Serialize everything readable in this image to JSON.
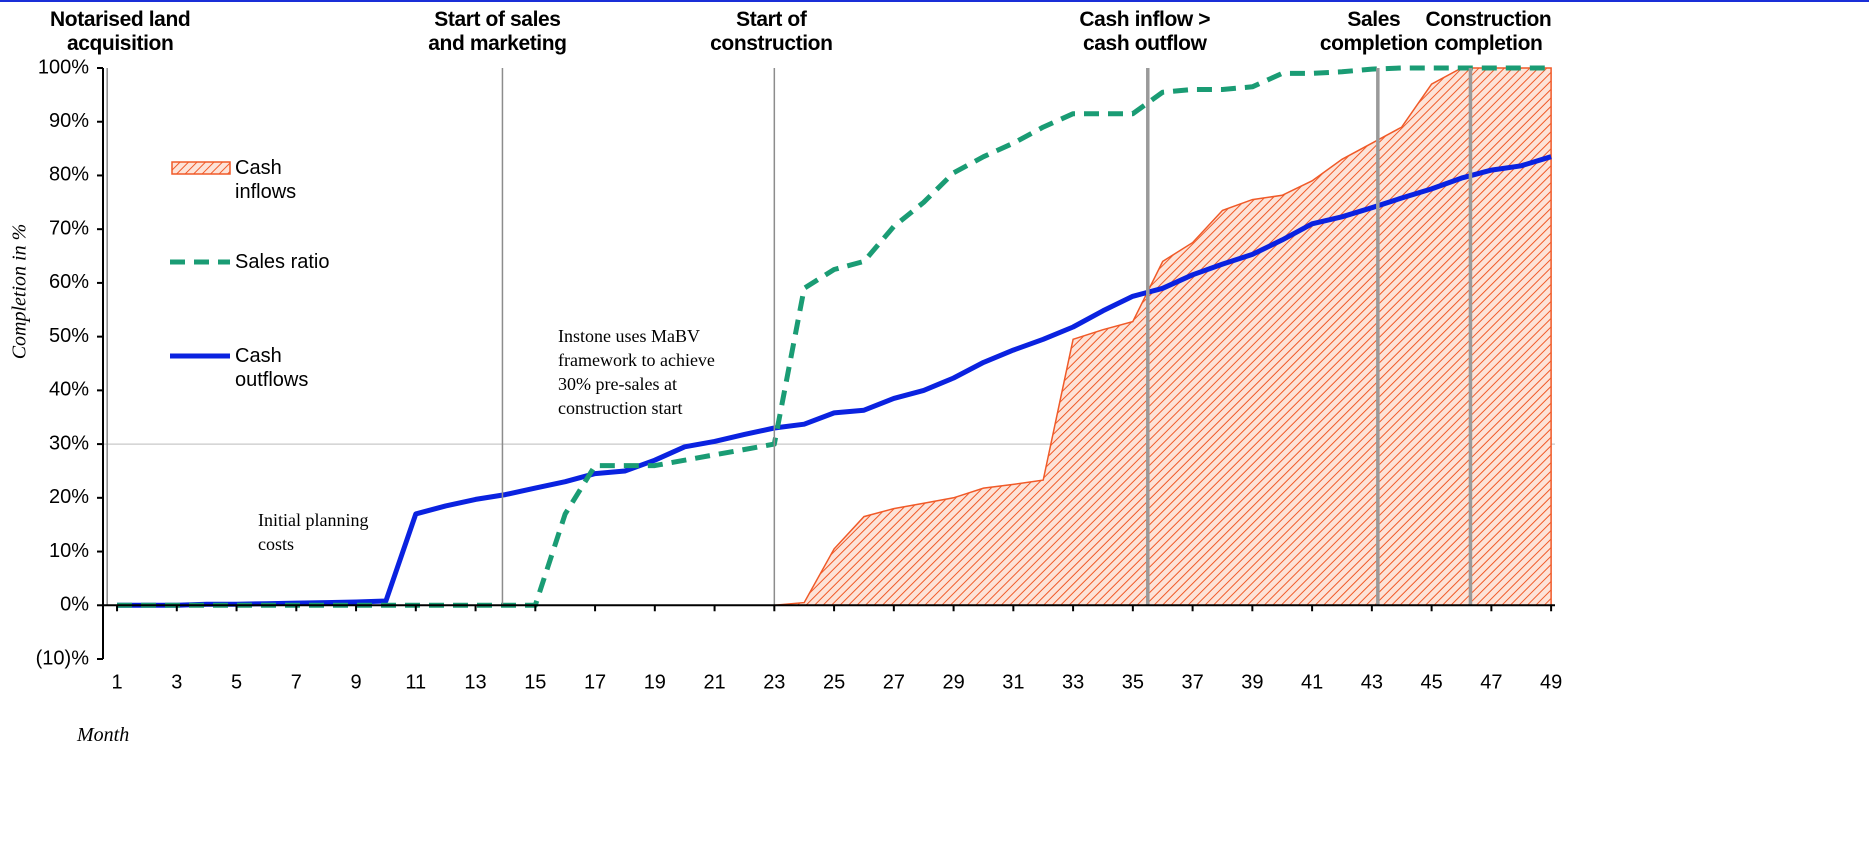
{
  "chart_data": {
    "type": "line",
    "x": [
      1,
      2,
      3,
      4,
      5,
      6,
      7,
      8,
      9,
      10,
      11,
      12,
      13,
      14,
      15,
      16,
      17,
      18,
      19,
      20,
      21,
      22,
      23,
      24,
      25,
      26,
      27,
      28,
      29,
      30,
      31,
      32,
      33,
      34,
      35,
      36,
      37,
      38,
      39,
      40,
      41,
      42,
      43,
      44,
      45,
      46,
      47,
      48,
      49
    ],
    "series": [
      {
        "name": "Cash inflows",
        "kind": "area",
        "color": "#f05a28",
        "values": [
          0,
          0,
          0,
          0,
          0,
          0,
          0,
          0,
          0,
          0,
          0,
          0,
          0,
          0,
          0,
          0,
          0,
          0,
          0,
          0,
          0,
          0,
          0,
          0.5,
          10.5,
          16.5,
          18,
          19,
          20,
          21.8,
          22.5,
          23.3,
          49.5,
          51.3,
          52.8,
          64,
          67.5,
          73.5,
          75.5,
          76.3,
          79,
          83,
          86,
          89,
          97,
          100,
          100,
          100,
          100
        ]
      },
      {
        "name": "Sales ratio",
        "kind": "dashed",
        "color": "#1a9c74",
        "values": [
          0,
          0,
          0,
          0,
          0,
          0,
          0,
          0,
          0,
          0,
          0,
          0,
          0,
          0,
          0,
          17,
          26,
          26,
          26,
          27,
          28,
          29,
          30,
          59,
          62.5,
          64,
          70.5,
          75,
          80.5,
          83.5,
          86,
          89,
          91.5,
          91.5,
          91.5,
          95.5,
          96,
          96,
          96.5,
          99,
          99,
          99.3,
          99.8,
          100,
          100,
          100,
          100,
          100,
          100
        ]
      },
      {
        "name": "Cash outflows",
        "kind": "solid",
        "color": "#0a22e0",
        "values": [
          0,
          0,
          0,
          0.2,
          0.2,
          0.3,
          0.4,
          0.5,
          0.6,
          0.8,
          17,
          18.5,
          19.7,
          20.6,
          21.8,
          23,
          24.5,
          25,
          27,
          29.5,
          30.5,
          31.8,
          33,
          33.7,
          35.8,
          36.3,
          38.5,
          40,
          42.3,
          45.2,
          47.5,
          49.5,
          51.8,
          54.8,
          57.5,
          59,
          61.5,
          63.5,
          65.3,
          68,
          71,
          72.3,
          74,
          75.8,
          77.5,
          79.5,
          81,
          81.8,
          83.5
        ]
      }
    ],
    "xlim": [
      0.53,
      49.13
    ],
    "xticks": [
      1,
      3,
      5,
      7,
      9,
      11,
      13,
      15,
      17,
      19,
      21,
      23,
      25,
      27,
      29,
      31,
      33,
      35,
      37,
      39,
      41,
      43,
      45,
      47,
      49
    ],
    "ylim": [
      -10,
      100
    ],
    "yticks": [
      {
        "value": -10,
        "label": "(10)%"
      },
      {
        "value": 0,
        "label": "0%"
      },
      {
        "value": 10,
        "label": "10%"
      },
      {
        "value": 20,
        "label": "20%"
      },
      {
        "value": 30,
        "label": "30%"
      },
      {
        "value": 40,
        "label": "40%"
      },
      {
        "value": 50,
        "label": "50%"
      },
      {
        "value": 60,
        "label": "60%"
      },
      {
        "value": 70,
        "label": "70%"
      },
      {
        "value": 80,
        "label": "80%"
      },
      {
        "value": 90,
        "label": "90%"
      },
      {
        "value": 100,
        "label": "100%"
      }
    ],
    "xlabel": "Month",
    "ylabel": "Completion in %",
    "legend_position": "upper left",
    "reference_line": 30,
    "events": [
      {
        "x": 0.67,
        "label": "Notarised land acquisition"
      },
      {
        "x": 13.9,
        "label": "Start of sales and marketing"
      },
      {
        "x": 23,
        "label": "Start of construction"
      },
      {
        "x": 35.5,
        "label": "Cash inflow > cash outflow"
      },
      {
        "x": 43.2,
        "label": "Sales completion"
      },
      {
        "x": 46.3,
        "label": "Construction completion"
      }
    ],
    "annotations": [
      "Initial planning costs",
      "Instone uses MaBV framework to achieve 30% pre-sales at construction start"
    ]
  }
}
